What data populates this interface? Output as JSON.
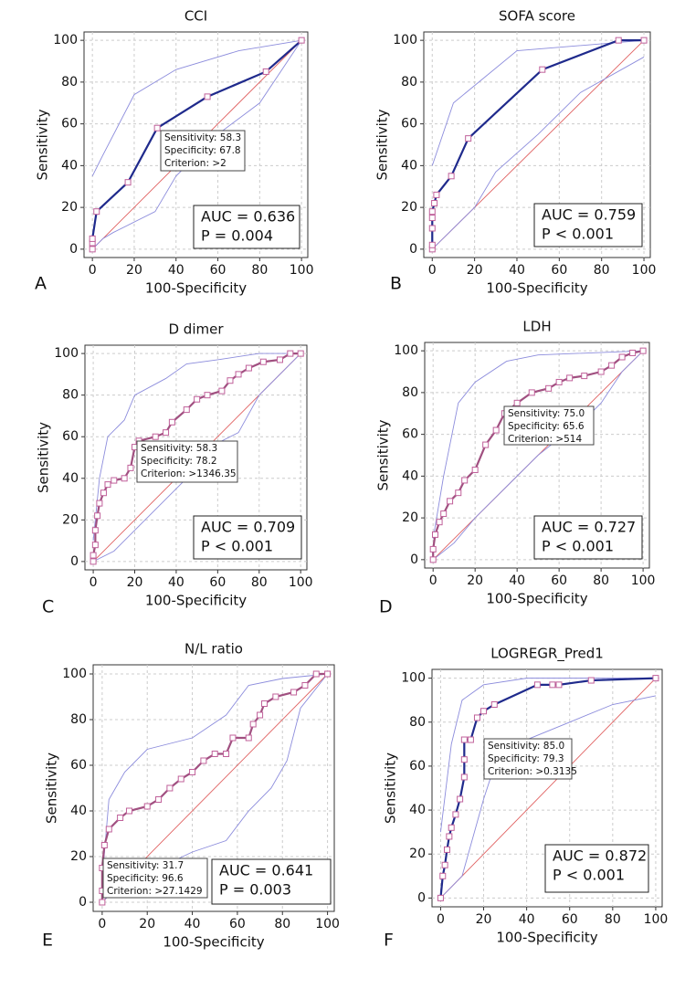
{
  "chart_data": [
    {
      "type": "roc",
      "panel": "A",
      "title": "CCI",
      "xlabel": "100-Specificity",
      "ylabel": "Sensitivity",
      "xlim": [
        -4,
        103
      ],
      "ylim": [
        -4,
        104
      ],
      "xticks": [
        0,
        20,
        40,
        60,
        80,
        100
      ],
      "yticks": [
        0,
        20,
        40,
        60,
        80,
        100
      ],
      "grid": true,
      "series": [
        {
          "color": "#e06060",
          "x": [
            0,
            100
          ],
          "values": [
            0,
            100
          ]
        },
        {
          "color": "#8c8cdc",
          "x": [
            0,
            5,
            20,
            40,
            70,
            100
          ],
          "values": [
            35,
            45,
            74,
            86,
            95,
            100
          ]
        },
        {
          "color": "#8c8cdc",
          "x": [
            0,
            5,
            10,
            30,
            40,
            60,
            80,
            90,
            100
          ],
          "values": [
            0,
            5,
            8,
            18,
            35,
            55,
            70,
            85,
            100
          ]
        },
        {
          "color": "#1f2a8c",
          "marker": "square",
          "x": [
            0,
            0,
            0,
            2,
            17,
            31,
            55,
            83,
            100
          ],
          "values": [
            0,
            3,
            5,
            18,
            32,
            58,
            73,
            85,
            100
          ]
        }
      ],
      "annotation": [
        "Sensitivity: 58.3",
        "Specificity: 67.8",
        "Criterion: >2"
      ],
      "stats": [
        "AUC = 0.636",
        "P = 0.004"
      ]
    },
    {
      "type": "roc",
      "panel": "B",
      "title": "SOFA score",
      "xlabel": "100-Specificity",
      "ylabel": "Sensitivity",
      "xlim": [
        -4,
        103
      ],
      "ylim": [
        -4,
        104
      ],
      "xticks": [
        0,
        20,
        40,
        60,
        80,
        100
      ],
      "yticks": [
        0,
        20,
        40,
        60,
        80,
        100
      ],
      "grid": true,
      "series": [
        {
          "color": "#e06060",
          "x": [
            0,
            100
          ],
          "values": [
            0,
            100
          ]
        },
        {
          "color": "#8c8cdc",
          "x": [
            0,
            10,
            40,
            100
          ],
          "values": [
            40,
            70,
            95,
            100
          ]
        },
        {
          "color": "#8c8cdc",
          "x": [
            0,
            10,
            20,
            30,
            50,
            70,
            100
          ],
          "values": [
            0,
            10,
            20,
            37,
            55,
            75,
            92
          ]
        },
        {
          "color": "#1f2a8c",
          "marker": "square",
          "x": [
            0,
            0,
            0,
            0,
            0,
            1,
            2,
            9,
            17,
            52,
            88,
            100
          ],
          "values": [
            0,
            2,
            10,
            15,
            18,
            22,
            26,
            35,
            53,
            86,
            100,
            100
          ]
        }
      ],
      "stats": [
        "AUC = 0.759",
        "P < 0.001"
      ]
    },
    {
      "type": "roc",
      "panel": "C",
      "title": "D dimer",
      "xlabel": "100-Specificity",
      "ylabel": "Sensitivity",
      "xlim": [
        -4,
        103
      ],
      "ylim": [
        -4,
        104
      ],
      "xticks": [
        0,
        20,
        40,
        60,
        80,
        100
      ],
      "yticks": [
        0,
        20,
        40,
        60,
        80,
        100
      ],
      "grid": true,
      "series": [
        {
          "color": "#e06060",
          "x": [
            0,
            100
          ],
          "values": [
            0,
            100
          ]
        },
        {
          "color": "#8c8cdc",
          "x": [
            0,
            3,
            7,
            15,
            20,
            35,
            45,
            60,
            80,
            100
          ],
          "values": [
            10,
            40,
            60,
            68,
            80,
            88,
            95,
            97,
            100,
            100
          ]
        },
        {
          "color": "#8c8cdc",
          "x": [
            0,
            10,
            20,
            30,
            40,
            50,
            60,
            70,
            80,
            90,
            100
          ],
          "values": [
            0,
            5,
            15,
            25,
            35,
            45,
            57,
            62,
            80,
            90,
            100
          ]
        },
        {
          "color": "#a05080",
          "marker": "square",
          "x": [
            0,
            0,
            1,
            1,
            2,
            3,
            5,
            7,
            10,
            15,
            18,
            20,
            22,
            30,
            35,
            38,
            45,
            50,
            55,
            62,
            66,
            70,
            75,
            82,
            90,
            95,
            100
          ],
          "values": [
            0,
            3,
            8,
            15,
            22,
            28,
            33,
            37,
            39,
            40,
            45,
            55,
            58,
            60,
            62,
            67,
            73,
            78,
            80,
            82,
            87,
            90,
            93,
            96,
            97,
            100,
            100
          ]
        }
      ],
      "annotation": [
        "Sensitivity: 58.3",
        "Specificity: 78.2",
        "Criterion: >1346.35"
      ],
      "stats": [
        "AUC = 0.709",
        "P < 0.001"
      ]
    },
    {
      "type": "roc",
      "panel": "D",
      "title": "LDH",
      "xlabel": "100-Specificity",
      "ylabel": "Sensitivity",
      "xlim": [
        -4,
        103
      ],
      "ylim": [
        -4,
        104
      ],
      "xticks": [
        0,
        20,
        40,
        60,
        80,
        100
      ],
      "yticks": [
        0,
        20,
        40,
        60,
        80,
        100
      ],
      "grid": true,
      "series": [
        {
          "color": "#e06060",
          "x": [
            0,
            100
          ],
          "values": [
            0,
            100
          ]
        },
        {
          "color": "#8c8cdc",
          "x": [
            0,
            5,
            12,
            20,
            35,
            50,
            100
          ],
          "values": [
            10,
            40,
            75,
            85,
            95,
            98,
            100
          ]
        },
        {
          "color": "#8c8cdc",
          "x": [
            0,
            10,
            20,
            30,
            40,
            50,
            60,
            70,
            80,
            90,
            100
          ],
          "values": [
            0,
            8,
            20,
            30,
            40,
            50,
            58,
            65,
            75,
            90,
            100
          ]
        },
        {
          "color": "#a05080",
          "marker": "square",
          "x": [
            0,
            0,
            1,
            3,
            5,
            8,
            12,
            15,
            20,
            25,
            30,
            34,
            40,
            47,
            55,
            60,
            65,
            72,
            80,
            85,
            90,
            95,
            100
          ],
          "values": [
            0,
            5,
            12,
            18,
            22,
            28,
            32,
            38,
            43,
            55,
            62,
            70,
            75,
            80,
            82,
            85,
            87,
            88,
            90,
            93,
            97,
            99,
            100
          ]
        }
      ],
      "annotation": [
        "Sensitivity: 75.0",
        "Specificity: 65.6",
        "Criterion: >514"
      ],
      "stats": [
        "AUC = 0.727",
        "P < 0.001"
      ]
    },
    {
      "type": "roc",
      "panel": "E",
      "title": "N/L ratio",
      "xlabel": "100-Specificity",
      "ylabel": "Sensitivity",
      "xlim": [
        -4,
        103
      ],
      "ylim": [
        -4,
        104
      ],
      "xticks": [
        0,
        20,
        40,
        60,
        80,
        100
      ],
      "yticks": [
        0,
        20,
        40,
        60,
        80,
        100
      ],
      "grid": true,
      "series": [
        {
          "color": "#e06060",
          "x": [
            0,
            100
          ],
          "values": [
            0,
            100
          ]
        },
        {
          "color": "#8c8cdc",
          "x": [
            0,
            3,
            10,
            20,
            40,
            55,
            65,
            80,
            100
          ],
          "values": [
            10,
            45,
            57,
            67,
            72,
            82,
            95,
            98,
            100
          ]
        },
        {
          "color": "#8c8cdc",
          "x": [
            0,
            5,
            15,
            25,
            40,
            55,
            65,
            75,
            82,
            88,
            100
          ],
          "values": [
            0,
            5,
            10,
            15,
            22,
            27,
            40,
            50,
            62,
            85,
            100
          ]
        },
        {
          "color": "#a05080",
          "marker": "square",
          "x": [
            0,
            0,
            0,
            1,
            3,
            8,
            12,
            20,
            25,
            30,
            35,
            40,
            45,
            50,
            55,
            58,
            65,
            67,
            70,
            72,
            77,
            85,
            90,
            95,
            100
          ],
          "values": [
            0,
            5,
            15,
            25,
            32,
            37,
            40,
            42,
            45,
            50,
            54,
            57,
            62,
            65,
            65,
            72,
            72,
            78,
            82,
            87,
            90,
            92,
            95,
            100,
            100
          ]
        }
      ],
      "annotation": [
        "Sensitivity: 31.7",
        "Specificity: 96.6",
        "Criterion: >27.1429"
      ],
      "stats": [
        "AUC = 0.641",
        "P = 0.003"
      ]
    },
    {
      "type": "roc",
      "panel": "F",
      "title": "LOGREGR_Pred1",
      "xlabel": "100-Specificity",
      "ylabel": "Sensitivity",
      "xlim": [
        -4,
        103
      ],
      "ylim": [
        -4,
        104
      ],
      "xticks": [
        0,
        20,
        40,
        60,
        80,
        100
      ],
      "yticks": [
        0,
        20,
        40,
        60,
        80,
        100
      ],
      "grid": true,
      "series": [
        {
          "color": "#e06060",
          "x": [
            0,
            100
          ],
          "values": [
            0,
            100
          ]
        },
        {
          "color": "#8c8cdc",
          "x": [
            0,
            5,
            10,
            20,
            40,
            100
          ],
          "values": [
            30,
            70,
            90,
            97,
            100,
            100
          ]
        },
        {
          "color": "#8c8cdc",
          "x": [
            0,
            10,
            20,
            25,
            40,
            60,
            80,
            100
          ],
          "values": [
            0,
            10,
            45,
            60,
            72,
            80,
            88,
            92
          ]
        },
        {
          "color": "#1f2a8c",
          "marker": "square",
          "x": [
            0,
            1,
            2,
            3,
            4,
            5,
            7,
            9,
            11,
            11,
            11,
            14,
            17,
            20,
            25,
            45,
            52,
            55,
            70,
            100
          ],
          "values": [
            0,
            10,
            15,
            22,
            28,
            32,
            38,
            45,
            55,
            63,
            72,
            72,
            82,
            85,
            88,
            97,
            97,
            97,
            99,
            100
          ]
        }
      ],
      "annotation": [
        "Sensitivity: 85.0",
        "Specificity: 79.3",
        "Criterion: >0.3135"
      ],
      "stats": [
        "AUC = 0.872",
        "P < 0.001"
      ]
    }
  ]
}
